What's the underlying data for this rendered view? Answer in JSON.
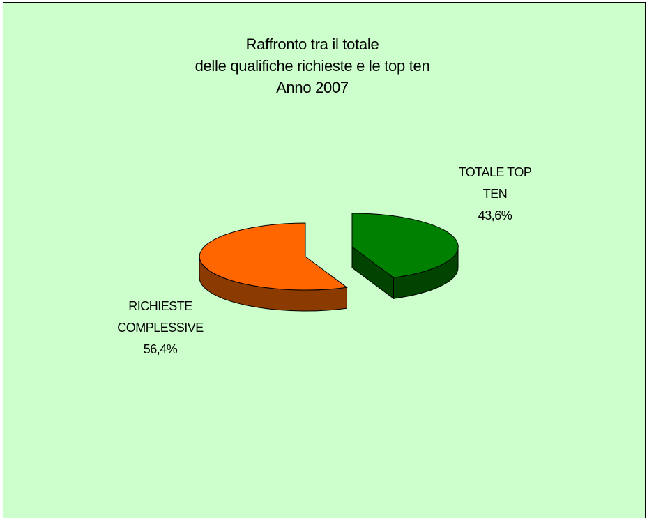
{
  "page": {
    "background": "#CCFFCC",
    "border_color": "#000000"
  },
  "chart_data": {
    "type": "pie",
    "style": "3d-exploded",
    "title_lines": [
      "Raffronto tra il totale",
      "delle qualifiche richieste e le top ten",
      "Anno 2007"
    ],
    "slices": [
      {
        "label_lines": [
          "RICHIESTE",
          "COMPLESSIVE"
        ],
        "value": 56.4,
        "value_label": "56,4%",
        "top_color": "#FF6600",
        "side_color": "#8B3A00"
      },
      {
        "label_lines": [
          "TOTALE TOP",
          "TEN"
        ],
        "value": 43.6,
        "value_label": "43,6%",
        "top_color": "#008000",
        "side_color": "#004400"
      }
    ],
    "legend": "none"
  }
}
